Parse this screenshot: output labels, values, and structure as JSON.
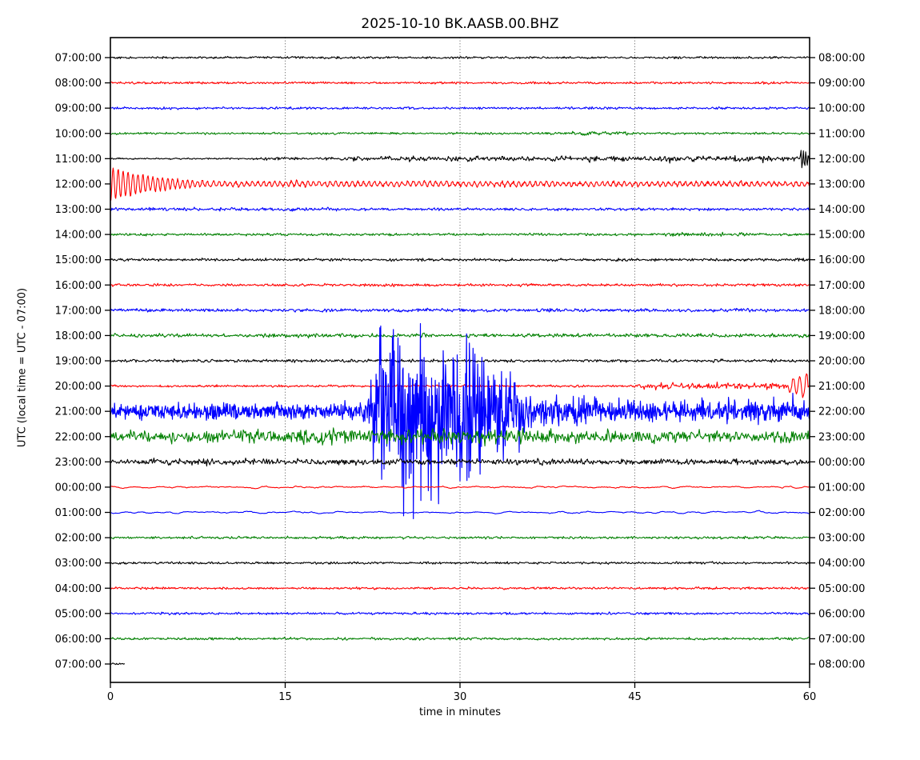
{
  "figure": {
    "title": "2025-10-10 BK.AASB.00.BHZ",
    "xlabel": "time in minutes",
    "ylabel": "UTC (local time = UTC - 07:00)"
  },
  "chart_data": {
    "type": "line",
    "subtype": "helicorder-seismogram",
    "station": "BK.AASB.00.BHZ",
    "date": "2025-10-10",
    "title": "2025-10-10 BK.AASB.00.BHZ",
    "xlabel": "time in minutes",
    "ylabel": "UTC (local time = UTC - 07:00)",
    "x_range": [
      0,
      60
    ],
    "x_ticks": [
      0,
      15,
      30,
      45,
      60
    ],
    "grid_x_minutes": [
      15,
      30,
      45
    ],
    "minutes_per_row": 60,
    "color_cycle": [
      "#000000",
      "#ff0000",
      "#0000ff",
      "#008000"
    ],
    "left_tick_labels": [
      "07:00:00",
      "08:00:00",
      "09:00:00",
      "10:00:00",
      "11:00:00",
      "12:00:00",
      "13:00:00",
      "14:00:00",
      "15:00:00",
      "16:00:00",
      "17:00:00",
      "18:00:00",
      "19:00:00",
      "20:00:00",
      "21:00:00",
      "22:00:00",
      "23:00:00",
      "00:00:00",
      "01:00:00",
      "02:00:00",
      "03:00:00",
      "04:00:00",
      "05:00:00",
      "06:00:00",
      "07:00:00"
    ],
    "right_tick_labels": [
      "08:00:00",
      "09:00:00",
      "10:00:00",
      "11:00:00",
      "12:00:00",
      "13:00:00",
      "14:00:00",
      "15:00:00",
      "16:00:00",
      "17:00:00",
      "18:00:00",
      "19:00:00",
      "20:00:00",
      "21:00:00",
      "22:00:00",
      "23:00:00",
      "00:00:00",
      "01:00:00",
      "02:00:00",
      "03:00:00",
      "04:00:00",
      "05:00:00",
      "06:00:00",
      "07:00:00",
      "08:00:00"
    ],
    "events": [
      {
        "row_start_utc": "11:00:00",
        "description": "noise level rises from ~21 min onward; sharp spike at ~59.3 min"
      },
      {
        "row_start_utc": "12:00:00",
        "description": "large decaying oscillation (ringing) for first ~8 min, low oscillation rest of hour"
      },
      {
        "row_start_utc": "20:00:00",
        "description": "elevated noise from ~46 min; strong burst ~58.3-60 min"
      },
      {
        "row_start_utc": "21:00:00",
        "description": "very large clipped earthquake signal ~22-36 min with spikes overlapping neighboring rows; elevated amplitude all hour"
      },
      {
        "row_start_utc": "22:00:00",
        "description": "elevated noise the entire hour"
      },
      {
        "row_start_utc": "23:00:00",
        "description": "moderately elevated noise the entire hour"
      },
      {
        "row_start_utc": "07:00:00 (last row)",
        "description": "trace ends ~1 min into the row"
      }
    ],
    "rows": [
      {
        "left": "07:00:00",
        "right": "08:00:00",
        "env": [
          [
            0,
            1.2
          ],
          [
            60,
            1.2
          ]
        ]
      },
      {
        "left": "08:00:00",
        "right": "09:00:00",
        "env": [
          [
            0,
            1.3
          ],
          [
            60,
            1.3
          ]
        ]
      },
      {
        "left": "09:00:00",
        "right": "10:00:00",
        "env": [
          [
            0,
            1.3
          ],
          [
            60,
            1.3
          ]
        ]
      },
      {
        "left": "10:00:00",
        "right": "11:00:00",
        "env": [
          [
            0,
            1.2
          ],
          [
            39,
            1.2
          ],
          [
            40,
            2.2
          ],
          [
            44,
            2.2
          ],
          [
            45,
            1.2
          ],
          [
            60,
            1.2
          ]
        ]
      },
      {
        "left": "11:00:00",
        "right": "12:00:00",
        "env": [
          [
            0,
            0.9
          ],
          [
            12,
            0.9
          ],
          [
            13,
            1.6
          ],
          [
            20,
            1.7
          ],
          [
            21,
            2.8
          ],
          [
            25,
            2.6
          ],
          [
            26,
            3.8
          ],
          [
            27,
            2.6
          ],
          [
            40,
            2.6
          ],
          [
            41,
            4.2
          ],
          [
            42,
            2.7
          ],
          [
            47,
            2.8
          ],
          [
            48,
            4.6
          ],
          [
            49,
            2.9
          ],
          [
            55,
            3.0
          ],
          [
            56,
            4.4
          ],
          [
            57,
            3.1
          ],
          [
            59,
            3.1
          ],
          [
            59.2,
            2.0
          ]
        ],
        "rings": [
          {
            "t0": 59.2,
            "t1": 60,
            "f": 4.6,
            "a0": 14,
            "a1": 7,
            "ph": 3.3
          }
        ]
      },
      {
        "left": "12:00:00",
        "right": "13:00:00",
        "samples": 1300,
        "env": [
          [
            0,
            1.6
          ],
          [
            60,
            1.6
          ]
        ],
        "rings": [
          {
            "t0": 0,
            "t1": 8.5,
            "f": 2.35,
            "a0": 21,
            "a1": 3,
            "ph": 1.2
          },
          {
            "t0": 8.5,
            "t1": 60,
            "f": 2.1,
            "a0": 3.1,
            "a1": 2.3,
            "ph": 0
          }
        ]
      },
      {
        "left": "13:00:00",
        "right": "14:00:00",
        "env": [
          [
            0,
            1.9
          ],
          [
            18,
            1.9
          ],
          [
            20,
            1.5
          ],
          [
            60,
            1.5
          ]
        ]
      },
      {
        "left": "14:00:00",
        "right": "15:00:00",
        "env": [
          [
            0,
            1.4
          ],
          [
            47,
            1.4
          ],
          [
            48,
            2.1
          ],
          [
            54,
            2.1
          ],
          [
            55,
            1.4
          ],
          [
            60,
            1.4
          ]
        ]
      },
      {
        "left": "15:00:00",
        "right": "16:00:00",
        "env": [
          [
            0,
            1.5
          ],
          [
            60,
            1.5
          ]
        ]
      },
      {
        "left": "16:00:00",
        "right": "17:00:00",
        "env": [
          [
            0,
            1.5
          ],
          [
            60,
            1.5
          ]
        ]
      },
      {
        "left": "17:00:00",
        "right": "18:00:00",
        "env": [
          [
            0,
            1.9
          ],
          [
            60,
            1.9
          ]
        ]
      },
      {
        "left": "18:00:00",
        "right": "19:00:00",
        "env": [
          [
            0,
            2.1
          ],
          [
            60,
            2.1
          ]
        ]
      },
      {
        "left": "19:00:00",
        "right": "20:00:00",
        "env": [
          [
            0,
            1.6
          ],
          [
            60,
            1.6
          ]
        ]
      },
      {
        "left": "20:00:00",
        "right": "21:00:00",
        "env": [
          [
            0,
            1.3
          ],
          [
            45,
            1.3
          ],
          [
            46,
            3.4
          ],
          [
            50,
            3.8
          ],
          [
            52,
            3.4
          ],
          [
            57,
            3.4
          ],
          [
            58,
            3.0
          ]
        ],
        "rings": [
          {
            "t0": 58.2,
            "t1": 59.9,
            "f": 1.75,
            "a0": 7,
            "a1": 19,
            "ph": 0.5
          }
        ]
      },
      {
        "left": "21:00:00",
        "right": "22:00:00",
        "samples": 1500,
        "env": [
          [
            0,
            8
          ],
          [
            5,
            8.5
          ],
          [
            12,
            9
          ],
          [
            21,
            9.5
          ],
          [
            21.8,
            13
          ],
          [
            22.5,
            30
          ],
          [
            23,
            60
          ],
          [
            26,
            60
          ],
          [
            30,
            56
          ],
          [
            33,
            34
          ],
          [
            36,
            18
          ],
          [
            40,
            14
          ],
          [
            44,
            12.5
          ],
          [
            50,
            12
          ],
          [
            56,
            12.5
          ],
          [
            60,
            13
          ]
        ],
        "spikes": [
          {
            "t0": 21.9,
            "t1": 36,
            "p": 0.5,
            "up": 112,
            "down": 137,
            "pow": 2.1,
            "ref": 60
          },
          {
            "t0": 36,
            "t1": 60,
            "p": 0.05,
            "up": 26,
            "down": 22,
            "pow": 1.4,
            "ref": 14
          }
        ]
      },
      {
        "left": "22:00:00",
        "right": "23:00:00",
        "env": [
          [
            0,
            6
          ],
          [
            8,
            7.5
          ],
          [
            15,
            7.5
          ],
          [
            22,
            8.5
          ],
          [
            34,
            8.5
          ],
          [
            42,
            7
          ],
          [
            50,
            6.5
          ],
          [
            60,
            6.5
          ]
        ]
      },
      {
        "left": "23:00:00",
        "right": "00:00:00",
        "env": [
          [
            0,
            3.2
          ],
          [
            4,
            3.6
          ],
          [
            7,
            4.3
          ],
          [
            10,
            3.5
          ],
          [
            30,
            3.3
          ],
          [
            60,
            3.2
          ]
        ]
      },
      {
        "left": "00:00:00",
        "right": "01:00:00",
        "smooth": 5,
        "env": [
          [
            0,
            2.4
          ],
          [
            60,
            2.4
          ]
        ]
      },
      {
        "left": "01:00:00",
        "right": "02:00:00",
        "smooth": 5,
        "env": [
          [
            0,
            2.1
          ],
          [
            60,
            2.1
          ]
        ]
      },
      {
        "left": "02:00:00",
        "right": "03:00:00",
        "env": [
          [
            0,
            1.4
          ],
          [
            60,
            1.4
          ]
        ]
      },
      {
        "left": "03:00:00",
        "right": "04:00:00",
        "env": [
          [
            0,
            1.3
          ],
          [
            60,
            1.3
          ]
        ]
      },
      {
        "left": "04:00:00",
        "right": "05:00:00",
        "env": [
          [
            0,
            1.3
          ],
          [
            60,
            1.3
          ]
        ]
      },
      {
        "left": "05:00:00",
        "right": "06:00:00",
        "env": [
          [
            0,
            1.3
          ],
          [
            60,
            1.3
          ]
        ]
      },
      {
        "left": "06:00:00",
        "right": "07:00:00",
        "env": [
          [
            0,
            1.4
          ],
          [
            60,
            1.4
          ]
        ]
      },
      {
        "left": "07:00:00",
        "right": "08:00:00",
        "data_end": 1.2,
        "env": [
          [
            0,
            0.9
          ],
          [
            60,
            0.9
          ]
        ]
      }
    ]
  }
}
